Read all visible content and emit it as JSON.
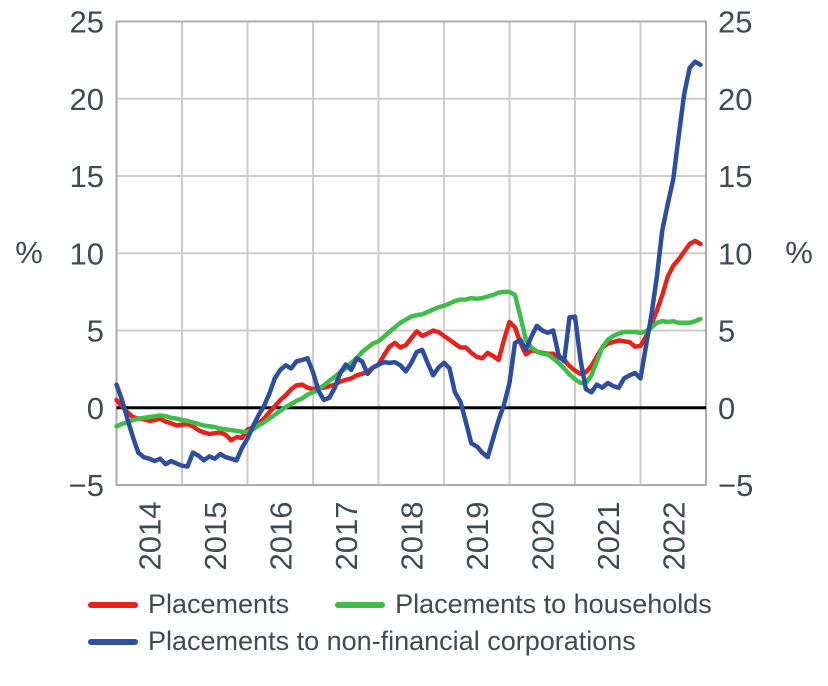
{
  "chart_data": {
    "type": "line",
    "title": "",
    "unit_label_left": "%",
    "unit_label_right": "%",
    "ylim": [
      -5,
      25
    ],
    "y_ticks": [
      25,
      20,
      15,
      10,
      5,
      0,
      -5
    ],
    "y_tick_labels": [
      "25",
      "20",
      "15",
      "10",
      "5",
      "0",
      "−5"
    ],
    "x_tick_labels": [
      "2014",
      "2015",
      "2016",
      "2017",
      "2018",
      "2019",
      "2020",
      "2021",
      "2022"
    ],
    "x_start": "2014-01",
    "x_end": "2022-12",
    "frequency": "monthly",
    "grid": true,
    "zero_line": true,
    "legend_position": "bottom",
    "colors": {
      "grid": "#cccccc",
      "plot_border": "#aaadb0",
      "zero_line": "#000000",
      "text": "#414a52"
    },
    "series": [
      {
        "name": "Placements",
        "color": "#e5231c",
        "values": [
          0.5,
          0.1,
          -0.3,
          -0.6,
          -0.7,
          -0.75,
          -0.85,
          -0.8,
          -0.7,
          -0.9,
          -1.0,
          -1.15,
          -1.1,
          -1.05,
          -1.2,
          -1.45,
          -1.6,
          -1.7,
          -1.65,
          -1.6,
          -1.75,
          -2.1,
          -1.9,
          -1.95,
          -1.4,
          -1.3,
          -1.05,
          -0.7,
          -0.3,
          0.1,
          0.5,
          0.8,
          1.2,
          1.45,
          1.5,
          1.3,
          1.2,
          1.3,
          1.3,
          1.4,
          1.5,
          1.7,
          1.8,
          1.9,
          2.1,
          2.2,
          2.35,
          2.6,
          2.8,
          3.4,
          3.95,
          4.2,
          3.9,
          4.05,
          4.5,
          4.95,
          4.65,
          4.8,
          5.0,
          4.9,
          4.65,
          4.4,
          4.15,
          3.9,
          3.9,
          3.55,
          3.3,
          3.2,
          3.55,
          3.35,
          3.1,
          4.4,
          5.55,
          5.2,
          4.2,
          3.45,
          3.7,
          3.65,
          3.55,
          3.5,
          3.5,
          3.25,
          3.1,
          2.7,
          2.4,
          2.2,
          2.3,
          2.7,
          3.3,
          3.9,
          4.15,
          4.25,
          4.35,
          4.3,
          4.25,
          3.95,
          4.0,
          4.6,
          5.4,
          6.3,
          7.3,
          8.5,
          9.2,
          9.6,
          10.1,
          10.6,
          10.8,
          10.6
        ]
      },
      {
        "name": "Placements to households",
        "color": "#3fbc49",
        "values": [
          -1.2,
          -1.05,
          -0.95,
          -0.8,
          -0.7,
          -0.65,
          -0.6,
          -0.55,
          -0.5,
          -0.55,
          -0.65,
          -0.7,
          -0.8,
          -0.85,
          -0.95,
          -1.05,
          -1.15,
          -1.2,
          -1.25,
          -1.35,
          -1.4,
          -1.45,
          -1.5,
          -1.55,
          -1.55,
          -1.4,
          -1.15,
          -0.95,
          -0.7,
          -0.45,
          -0.2,
          0.05,
          0.25,
          0.45,
          0.6,
          0.85,
          1.0,
          1.2,
          1.45,
          1.75,
          2.0,
          2.3,
          2.55,
          2.9,
          3.2,
          3.6,
          3.9,
          4.15,
          4.3,
          4.6,
          4.9,
          5.2,
          5.5,
          5.7,
          5.9,
          6.0,
          6.05,
          6.2,
          6.35,
          6.5,
          6.6,
          6.75,
          6.9,
          7.0,
          7.0,
          7.1,
          7.05,
          7.1,
          7.2,
          7.3,
          7.45,
          7.5,
          7.5,
          7.3,
          5.9,
          4.4,
          3.9,
          3.65,
          3.5,
          3.45,
          3.2,
          2.9,
          2.55,
          2.15,
          1.85,
          1.6,
          1.6,
          2.1,
          3.0,
          3.9,
          4.4,
          4.65,
          4.8,
          4.9,
          4.9,
          4.9,
          4.85,
          4.95,
          5.2,
          5.5,
          5.6,
          5.55,
          5.6,
          5.5,
          5.5,
          5.5,
          5.6,
          5.75
        ]
      },
      {
        "name": "Placements to non-financial corporations",
        "color": "#2e4d9e",
        "values": [
          1.5,
          0.5,
          -0.7,
          -1.9,
          -2.9,
          -3.2,
          -3.3,
          -3.45,
          -3.3,
          -3.65,
          -3.45,
          -3.6,
          -3.75,
          -3.8,
          -2.9,
          -3.1,
          -3.4,
          -3.15,
          -3.3,
          -3.0,
          -3.2,
          -3.3,
          -3.4,
          -2.6,
          -2.0,
          -1.2,
          -0.5,
          0.1,
          0.9,
          1.9,
          2.45,
          2.75,
          2.55,
          3.0,
          3.1,
          3.2,
          2.3,
          1.1,
          0.5,
          0.65,
          1.3,
          2.25,
          2.8,
          2.45,
          3.2,
          3.0,
          2.2,
          2.6,
          2.8,
          2.95,
          2.9,
          2.95,
          2.75,
          2.35,
          2.9,
          3.6,
          3.75,
          2.9,
          2.1,
          2.6,
          2.9,
          2.55,
          1.0,
          0.4,
          -0.9,
          -2.3,
          -2.5,
          -2.9,
          -3.2,
          -2.0,
          -0.8,
          0.2,
          1.6,
          4.2,
          4.4,
          3.75,
          4.6,
          5.3,
          5.0,
          4.85,
          5.0,
          3.4,
          3.0,
          5.85,
          5.9,
          3.1,
          1.2,
          1.0,
          1.5,
          1.3,
          1.6,
          1.4,
          1.3,
          1.9,
          2.1,
          2.25,
          1.9,
          4.0,
          6.0,
          8.5,
          11.5,
          13.2,
          14.8,
          17.6,
          20.3,
          22.0,
          22.4,
          22.2
        ]
      }
    ]
  }
}
